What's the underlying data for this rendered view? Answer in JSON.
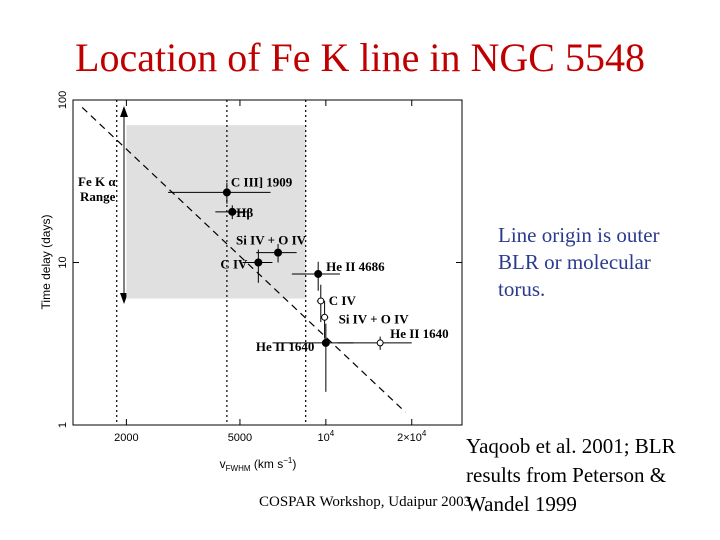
{
  "slide": {
    "title": "Location of Fe K line in NGC 5548",
    "side_note": "Line origin is outer BLR or molecular torus.",
    "source_note": "Yaqoob et al. 2001; BLR results from Peterson & Wandel 1999",
    "footer": "COSPAR Workshop, Udaipur 2003"
  },
  "chart_data": {
    "type": "scatter",
    "title": "",
    "xlabel": "v_FWHM (km s^-1)",
    "ylabel": "Time delay (days)",
    "x_scale": "log",
    "y_scale": "log",
    "xlim": [
      1300,
      30000
    ],
    "ylim": [
      1,
      100
    ],
    "x_ticks": [
      {
        "value": 2000,
        "label": "2000"
      },
      {
        "value": 5000,
        "label": "5000"
      },
      {
        "value": 10000,
        "label": "10^4"
      },
      {
        "value": 20000,
        "label": "2×10^4"
      }
    ],
    "y_ticks": [
      {
        "value": 1,
        "label": "1"
      },
      {
        "value": 10,
        "label": "10"
      },
      {
        "value": 100,
        "label": "100"
      }
    ],
    "shaded_region": {
      "label": "Fe K α Range",
      "x_range": [
        2000,
        8500
      ],
      "y_range": [
        6,
        70
      ],
      "color": "#e0e0e0"
    },
    "dotted_lines_x": [
      1850,
      4500,
      8500
    ],
    "fit_line": {
      "style": "dashed",
      "slope": -2,
      "through": [
        [
          1400,
          90
        ],
        [
          19000,
          1.2
        ]
      ]
    },
    "points": [
      {
        "label": "C III] 1909",
        "x": 4500,
        "y": 27,
        "xerr": [
          1700,
          1900
        ],
        "yerr": [
          4,
          4
        ],
        "filled": true
      },
      {
        "label": "Hβ",
        "x": 4700,
        "y": 20.5,
        "xerr": [
          600,
          600
        ],
        "yerr": [
          2,
          2
        ],
        "filled": true
      },
      {
        "label": "Si IV + O IV",
        "x": 6800,
        "y": 11.5,
        "xerr": [
          1100,
          1100
        ],
        "yerr": [
          1.5,
          1.5
        ],
        "filled": true
      },
      {
        "label": "C IV",
        "x": 5800,
        "y": 10,
        "xerr": [
          700,
          700
        ],
        "yerr": [
          2.5,
          2
        ],
        "filled": true
      },
      {
        "label": "He II 4686",
        "x": 9400,
        "y": 8.5,
        "xerr": [
          1800,
          1800
        ],
        "yerr": [
          1.8,
          1.6
        ],
        "filled": true
      },
      {
        "label": "C IV",
        "x": 9600,
        "y": 5.8,
        "xerr": [
          300,
          300
        ],
        "yerr": [
          1.5,
          1.5
        ],
        "filled": false
      },
      {
        "label": "Si IV + O IV",
        "x": 9900,
        "y": 4.6,
        "xerr": [
          300,
          300
        ],
        "yerr": [
          1.2,
          1.2
        ],
        "filled": false
      },
      {
        "label": "He II 1640",
        "x": 15500,
        "y": 3.2,
        "xerr": [
          4500,
          4500
        ],
        "yerr": [
          0.3,
          0.3
        ],
        "filled": false
      },
      {
        "label": "He II 1640",
        "x": 10000,
        "y": 3.2,
        "xerr": [
          3500,
          2500
        ],
        "yerr": [
          1.6,
          1.0
        ],
        "filled": true
      }
    ],
    "annotations": [
      "Fe K α",
      "Range"
    ]
  },
  "colors": {
    "title": "#c00000",
    "side_note": "#2a3b8f",
    "shade": "#e0e0e0"
  }
}
